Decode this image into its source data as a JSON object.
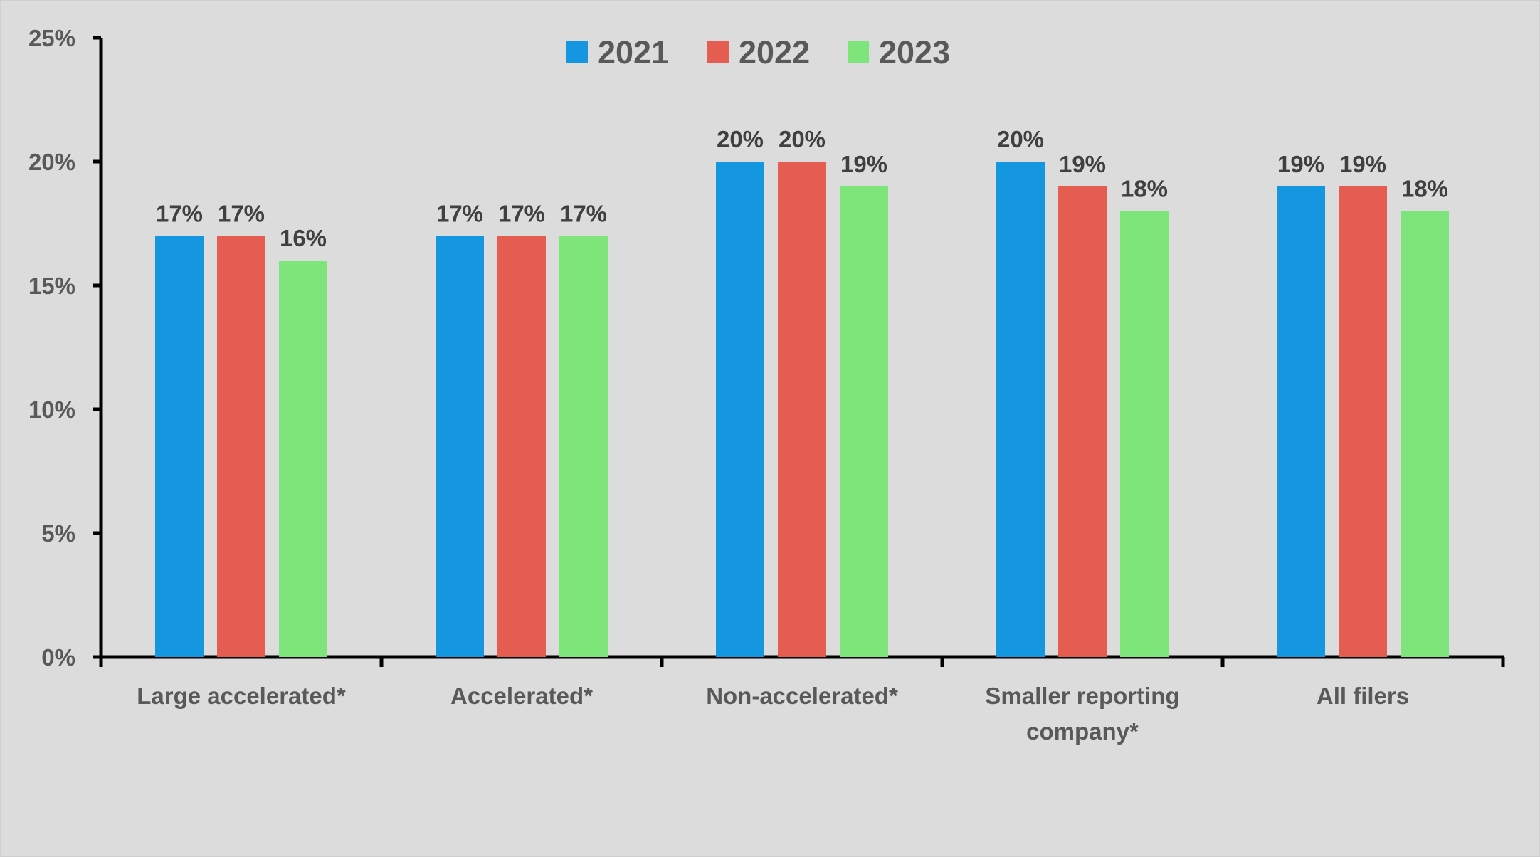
{
  "chart_data": {
    "type": "bar",
    "title": "",
    "xlabel": "",
    "ylabel": "",
    "categories": [
      [
        "Large accelerated*"
      ],
      [
        "Accelerated*"
      ],
      [
        "Non-accelerated*"
      ],
      [
        "Smaller reporting",
        "company*"
      ],
      [
        "All filers"
      ]
    ],
    "series": [
      {
        "name": "2021",
        "color": "#1496e0",
        "values": [
          17,
          17,
          20,
          20,
          19
        ],
        "labels": [
          "17%",
          "17%",
          "20%",
          "20%",
          "19%"
        ]
      },
      {
        "name": "2022",
        "color": "#e55c50",
        "values": [
          17,
          17,
          20,
          19,
          19
        ],
        "labels": [
          "17%",
          "17%",
          "20%",
          "19%",
          "19%"
        ]
      },
      {
        "name": "2023",
        "color": "#7ee57a",
        "values": [
          16,
          17,
          19,
          18,
          18
        ],
        "labels": [
          "16%",
          "17%",
          "19%",
          "18%",
          "18%"
        ]
      }
    ],
    "ylim": [
      0,
      25
    ],
    "yticks": [
      0,
      5,
      10,
      15,
      20,
      25
    ],
    "ytick_labels": [
      "0%",
      "5%",
      "10%",
      "15%",
      "20%",
      "25%"
    ],
    "grid": false,
    "legend_position": "top-center",
    "background": "#dcdcdc"
  }
}
